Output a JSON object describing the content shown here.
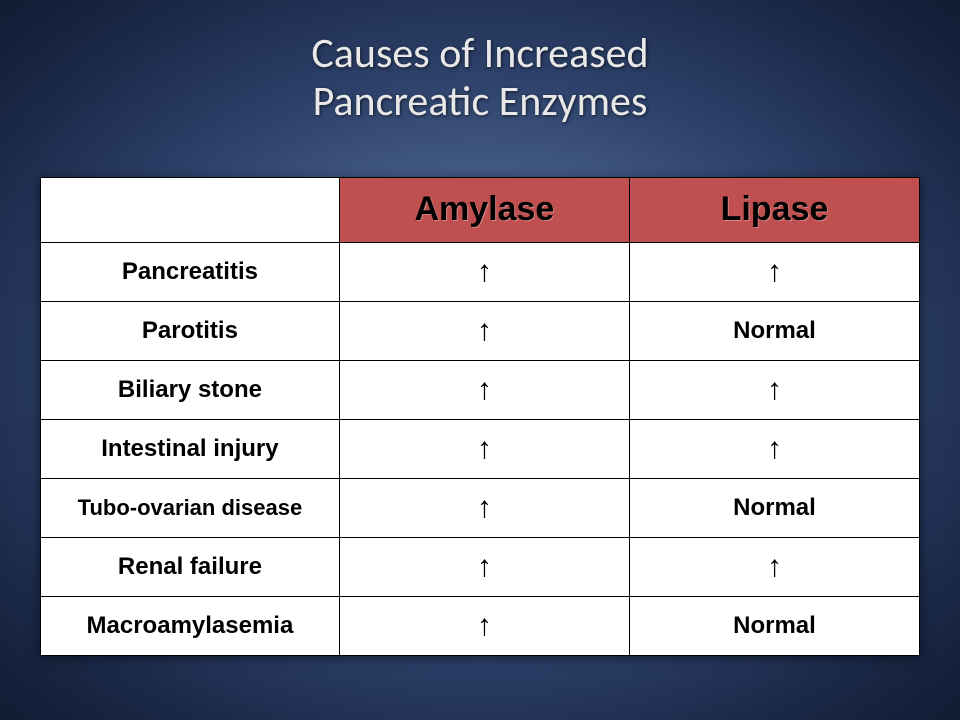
{
  "title_line1": "Causes of Increased",
  "title_line2": "Pancreatic Enzymes",
  "table": {
    "header_accent_bg": "#c05050",
    "columns": [
      {
        "label": "",
        "class": "header-plain"
      },
      {
        "label": "Amylase",
        "class": "header-accent"
      },
      {
        "label": "Lipase",
        "class": "header-accent"
      }
    ],
    "rows": [
      {
        "label": "Pancreatitis",
        "amylase": "↑",
        "lipase": "↑"
      },
      {
        "label": "Parotitis",
        "amylase": "↑",
        "lipase": "Normal"
      },
      {
        "label": "Biliary stone",
        "amylase": "↑",
        "lipase": "↑"
      },
      {
        "label": "Intestinal injury",
        "amylase": "↑",
        "lipase": "↑"
      },
      {
        "label": "Tubo-ovarian disease",
        "amylase": "↑",
        "lipase": "Normal",
        "label_class": "small-label"
      },
      {
        "label": "Renal failure",
        "amylase": "↑",
        "lipase": "↑"
      },
      {
        "label": "Macroamylasemia",
        "amylase": "↑",
        "lipase": "Normal"
      }
    ]
  }
}
